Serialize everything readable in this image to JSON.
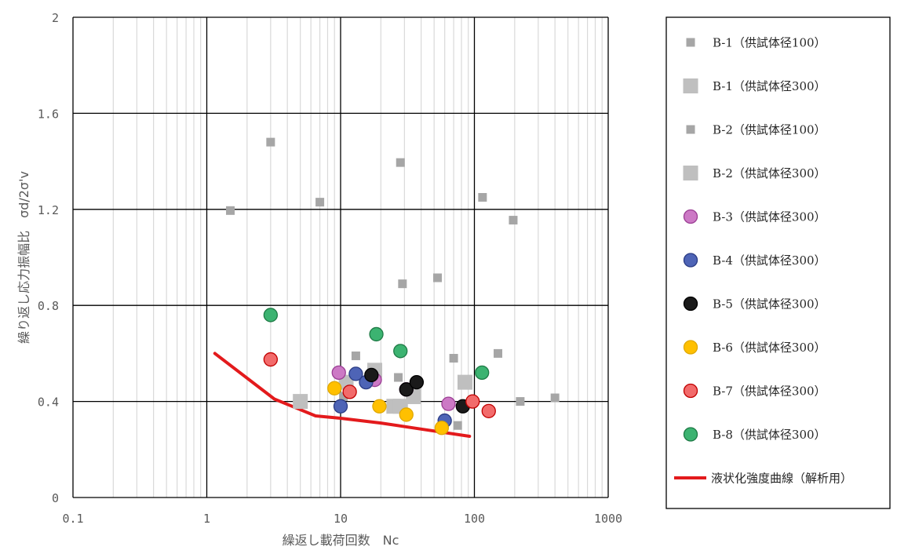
{
  "chart_data": {
    "type": "scatter",
    "title": "",
    "xlabel": "繰返し載荷回数　Nc",
    "ylabel": "繰り返し応力振幅比　σd/2σ'v",
    "xscale": "log",
    "xlim": [
      0.1,
      1000
    ],
    "ylim": [
      0,
      2
    ],
    "xticks": [
      0.1,
      1,
      10,
      100,
      1000
    ],
    "xtick_labels": [
      "0.1",
      "1",
      "10",
      "100",
      "1000"
    ],
    "yticks": [
      0,
      0.4,
      0.8,
      1.2,
      1.6,
      2
    ],
    "ytick_labels": [
      "0",
      "0.4",
      "0.8",
      "1.2",
      "1.6",
      "2"
    ],
    "grid": true,
    "legend_position": "right",
    "series": [
      {
        "name": "B-1（供試体径100）",
        "marker": "square-small",
        "color": "#a6a6a6",
        "points": [
          [
            1.5,
            1.195
          ],
          [
            3,
            1.48
          ],
          [
            7,
            1.23
          ],
          [
            13,
            0.59
          ],
          [
            27,
            0.5
          ],
          [
            28,
            1.395
          ],
          [
            29,
            0.89
          ],
          [
            53,
            0.915
          ],
          [
            70,
            0.58
          ],
          [
            115,
            1.25
          ],
          [
            150,
            0.6
          ],
          [
            195,
            1.155
          ],
          [
            220,
            0.4
          ],
          [
            400,
            0.415
          ]
        ]
      },
      {
        "name": "B-1（供試体径300）",
        "marker": "square-large",
        "color": "#bfbfbf",
        "points": [
          [
            5,
            0.4
          ],
          [
            18,
            0.53
          ],
          [
            25,
            0.38
          ],
          [
            35,
            0.42
          ],
          [
            85,
            0.48
          ]
        ]
      },
      {
        "name": "B-2（供試体径100）",
        "marker": "square-small",
        "color": "#a6a6a6",
        "points": [
          [
            10.5,
            0.42
          ],
          [
            65,
            0.385
          ],
          [
            75,
            0.3
          ]
        ]
      },
      {
        "name": "B-2（供試体径300）",
        "marker": "square-large",
        "color": "#bfbfbf",
        "points": [
          [
            11,
            0.48
          ],
          [
            28,
            0.38
          ]
        ]
      },
      {
        "name": "B-3（供試体径300）",
        "marker": "circle",
        "color": "#cc79c5",
        "stroke": "#9b3e94",
        "points": [
          [
            9.7,
            0.52
          ],
          [
            18,
            0.49
          ],
          [
            31,
            0.45
          ],
          [
            64,
            0.39
          ]
        ]
      },
      {
        "name": "B-4（供試体径300）",
        "marker": "circle",
        "color": "#4e64b6",
        "stroke": "#2b3c85",
        "points": [
          [
            10,
            0.38
          ],
          [
            13,
            0.515
          ],
          [
            15.5,
            0.48
          ],
          [
            60,
            0.32
          ]
        ]
      },
      {
        "name": "B-5（供試体径300）",
        "marker": "circle",
        "color": "#1a1a1a",
        "stroke": "#000000",
        "points": [
          [
            17,
            0.51
          ],
          [
            31,
            0.45
          ],
          [
            37,
            0.48
          ],
          [
            82,
            0.38
          ]
        ]
      },
      {
        "name": "B-6（供試体径300）",
        "marker": "circle",
        "color": "#ffc000",
        "stroke": "#e0a800",
        "points": [
          [
            9,
            0.455
          ],
          [
            19.5,
            0.38
          ],
          [
            31,
            0.345
          ],
          [
            57,
            0.29
          ]
        ]
      },
      {
        "name": "B-7（供試体径300）",
        "marker": "circle",
        "color": "#f26b6b",
        "stroke": "#c00000",
        "points": [
          [
            3,
            0.575
          ],
          [
            11.7,
            0.44
          ],
          [
            97,
            0.4
          ],
          [
            128,
            0.36
          ]
        ]
      },
      {
        "name": "B-8（供試体径300）",
        "marker": "circle",
        "color": "#3cb371",
        "stroke": "#1e7a45",
        "points": [
          [
            3,
            0.76
          ],
          [
            18.5,
            0.68
          ],
          [
            28,
            0.61
          ],
          [
            114,
            0.52
          ]
        ]
      }
    ],
    "curve": {
      "name": "液状化強度曲線（解析用）",
      "color": "#e31a1c",
      "points": [
        [
          1.15,
          0.6
        ],
        [
          3.2,
          0.41
        ],
        [
          6.5,
          0.34
        ],
        [
          10,
          0.33
        ],
        [
          20,
          0.31
        ],
        [
          40,
          0.285
        ],
        [
          92,
          0.255
        ]
      ]
    }
  }
}
